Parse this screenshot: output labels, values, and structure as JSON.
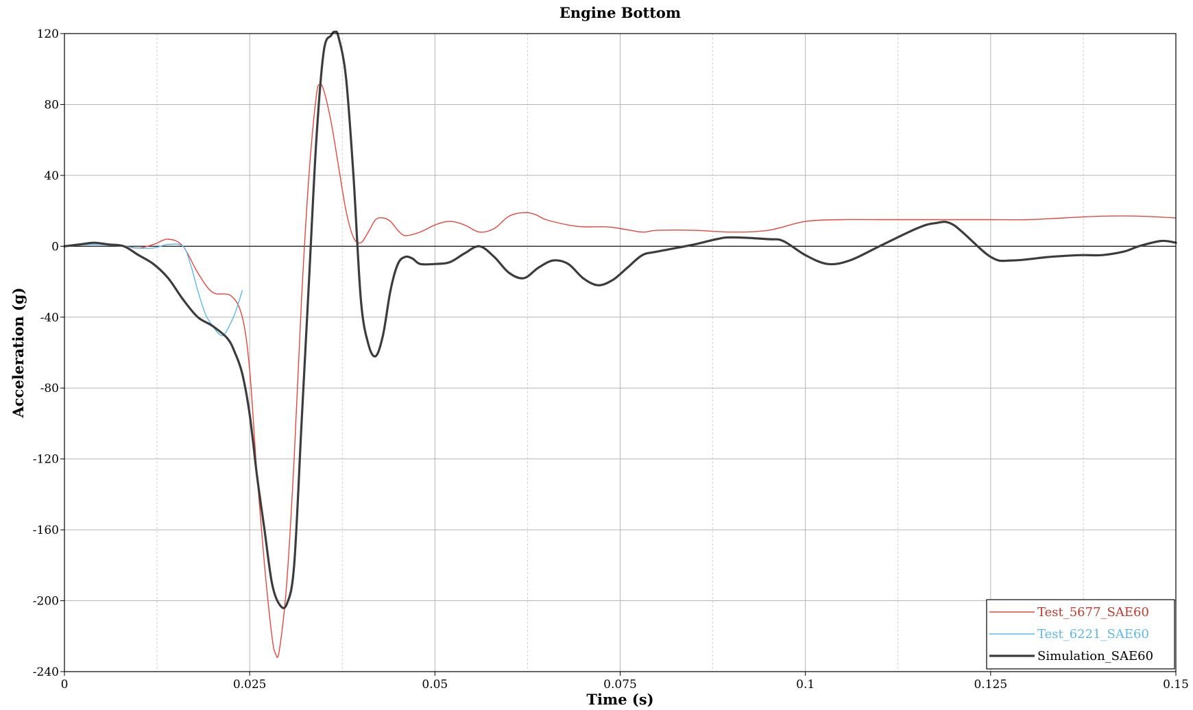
{
  "chart_data": {
    "type": "line",
    "title": "Engine Bottom",
    "xlabel": "Time (s)",
    "ylabel": "Acceleration (g)",
    "xlim": [
      0,
      0.15
    ],
    "ylim": [
      -240,
      120
    ],
    "xticks": [
      "0",
      "0.025",
      "0.05",
      "0.075",
      "0.1",
      "0.125",
      "0.15"
    ],
    "yticks": [
      "120",
      "80",
      "40",
      "0",
      "-40",
      "-80",
      "-120",
      "-160",
      "-200",
      "-240"
    ],
    "grid": true,
    "legend_position": "bottom-right",
    "series": [
      {
        "name": "Test_5677_SAE60",
        "color": "#e8453a",
        "x": [
          0,
          0.004,
          0.008,
          0.01,
          0.012,
          0.014,
          0.016,
          0.018,
          0.02,
          0.0225,
          0.024,
          0.025,
          0.026,
          0.027,
          0.028,
          0.0285,
          0.029,
          0.03,
          0.031,
          0.032,
          0.033,
          0.034,
          0.0345,
          0.035,
          0.036,
          0.037,
          0.038,
          0.039,
          0.04,
          0.041,
          0.042,
          0.043,
          0.044,
          0.045,
          0.046,
          0.048,
          0.05,
          0.052,
          0.054,
          0.056,
          0.058,
          0.06,
          0.062,
          0.0635,
          0.065,
          0.068,
          0.07,
          0.073,
          0.075,
          0.078,
          0.08,
          0.085,
          0.09,
          0.095,
          0.1,
          0.105,
          0.11,
          0.115,
          0.12,
          0.125,
          0.13,
          0.135,
          0.14,
          0.145,
          0.15
        ],
        "y": [
          0,
          1,
          0,
          -1,
          1,
          4,
          0,
          -15,
          -26,
          -28,
          -40,
          -70,
          -130,
          -180,
          -220,
          -230,
          -228,
          -190,
          -120,
          -30,
          40,
          85,
          91,
          88,
          70,
          45,
          20,
          5,
          2,
          8,
          15,
          16,
          14,
          9,
          6,
          8,
          12,
          14,
          12,
          8,
          10,
          17,
          19,
          18,
          15,
          12,
          11,
          11,
          10,
          8,
          9,
          9,
          8,
          9,
          14,
          15,
          15,
          15,
          15,
          15,
          15,
          16,
          17,
          17,
          16
        ]
      },
      {
        "name": "Test_6221_SAE60",
        "color": "#5bb8ea",
        "x": [
          0,
          0.004,
          0.008,
          0.01,
          0.012,
          0.014,
          0.016,
          0.017,
          0.018,
          0.019,
          0.02,
          0.021,
          0.0215,
          0.022,
          0.023,
          0.024
        ],
        "y": [
          0,
          1,
          0,
          -1,
          -1,
          1,
          0,
          -10,
          -25,
          -38,
          -45,
          -50,
          -50,
          -47,
          -38,
          -25
        ]
      },
      {
        "name": "Simulation_SAE60",
        "color": "#3c3c3c",
        "x": [
          0,
          0.002,
          0.004,
          0.006,
          0.008,
          0.01,
          0.012,
          0.014,
          0.016,
          0.018,
          0.02,
          0.022,
          0.023,
          0.024,
          0.025,
          0.026,
          0.027,
          0.028,
          0.029,
          0.03,
          0.031,
          0.032,
          0.033,
          0.034,
          0.035,
          0.036,
          0.0365,
          0.037,
          0.038,
          0.039,
          0.04,
          0.041,
          0.042,
          0.043,
          0.044,
          0.045,
          0.046,
          0.047,
          0.048,
          0.05,
          0.052,
          0.054,
          0.056,
          0.058,
          0.06,
          0.062,
          0.064,
          0.066,
          0.068,
          0.07,
          0.072,
          0.074,
          0.076,
          0.078,
          0.08,
          0.085,
          0.088,
          0.09,
          0.095,
          0.097,
          0.1,
          0.103,
          0.106,
          0.11,
          0.115,
          0.1175,
          0.12,
          0.125,
          0.128,
          0.133,
          0.137,
          0.14,
          0.143,
          0.145,
          0.148,
          0.15
        ],
        "y": [
          0,
          1,
          2,
          1,
          0,
          -5,
          -10,
          -18,
          -30,
          -40,
          -45,
          -52,
          -60,
          -72,
          -95,
          -130,
          -160,
          -190,
          -202,
          -202,
          -180,
          -100,
          -20,
          60,
          110,
          119,
          121,
          118,
          95,
          40,
          -30,
          -55,
          -62,
          -50,
          -25,
          -10,
          -6,
          -7,
          -10,
          -10,
          -9,
          -4,
          0,
          -6,
          -15,
          -18,
          -12,
          -8,
          -10,
          -18,
          -22,
          -19,
          -12,
          -5,
          -3,
          1,
          4,
          5,
          4,
          3,
          -5,
          -10,
          -8,
          0,
          10,
          13,
          12,
          -6,
          -8,
          -6,
          -5,
          -5,
          -3,
          0,
          3,
          2
        ]
      }
    ]
  }
}
